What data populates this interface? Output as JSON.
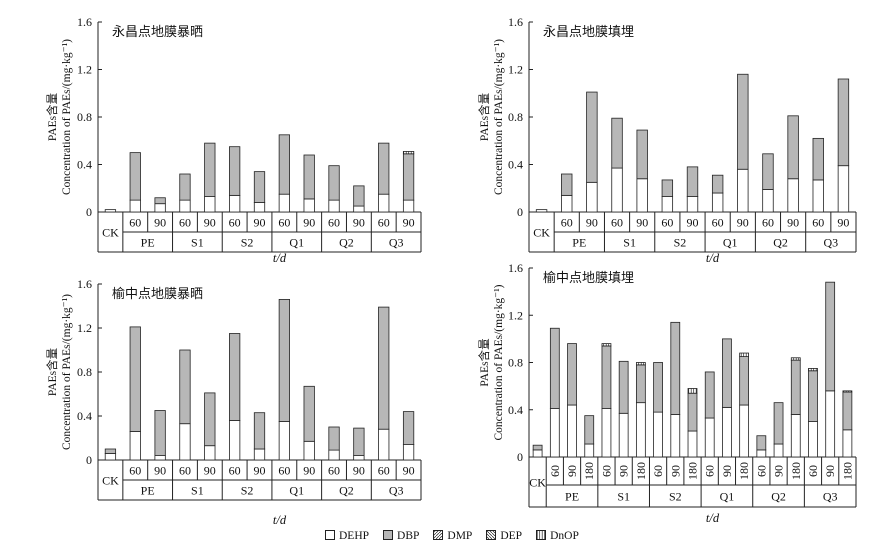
{
  "colors": {
    "DEHP": "#ffffff",
    "DBP": "#b7b7b7",
    "DMP": "#ffffff",
    "DEP": "#ffffff",
    "DnOP": "#ffffff",
    "stroke": "#222222"
  },
  "legend": [
    {
      "label": "DEHP",
      "pattern": "solid-white"
    },
    {
      "label": "DBP",
      "pattern": "solid-gray"
    },
    {
      "label": "DMP",
      "pattern": "hatch-forward"
    },
    {
      "label": "DEP",
      "pattern": "hatch-back"
    },
    {
      "label": "DnOP",
      "pattern": "vertical-lines"
    }
  ],
  "chart_data": [
    {
      "type": "bar",
      "stacked": true,
      "title": "永昌点地膜暴晒",
      "ylabel_cn": "PAEs含量",
      "ylabel": "Concentration of PAEs/(mg·kg⁻¹)",
      "xlabel": "t/d",
      "ylim": [
        0,
        1.6
      ],
      "yticks": [
        "0",
        "0.4",
        "0.8",
        "1.2",
        "1.6"
      ],
      "categories": [
        "CK",
        "60",
        "90",
        "60",
        "90",
        "60",
        "90",
        "60",
        "90",
        "60",
        "90",
        "60",
        "90"
      ],
      "groups": [
        {
          "label": "CK",
          "count": 1
        },
        {
          "label": "PE",
          "count": 2
        },
        {
          "label": "S1",
          "count": 2
        },
        {
          "label": "S2",
          "count": 2
        },
        {
          "label": "Q1",
          "count": 2
        },
        {
          "label": "Q2",
          "count": 2
        },
        {
          "label": "Q3",
          "count": 2
        }
      ],
      "series": [
        {
          "name": "DEHP",
          "values": [
            0.02,
            0.1,
            0.07,
            0.1,
            0.13,
            0.14,
            0.08,
            0.15,
            0.11,
            0.1,
            0.05,
            0.15,
            0.1
          ]
        },
        {
          "name": "DBP",
          "values": [
            0.0,
            0.4,
            0.05,
            0.22,
            0.45,
            0.41,
            0.26,
            0.5,
            0.37,
            0.29,
            0.17,
            0.43,
            0.39
          ]
        },
        {
          "name": "DMP",
          "values": [
            0,
            0,
            0,
            0,
            0,
            0,
            0,
            0,
            0,
            0,
            0,
            0,
            0
          ]
        },
        {
          "name": "DEP",
          "values": [
            0,
            0,
            0,
            0,
            0,
            0,
            0,
            0,
            0,
            0,
            0,
            0,
            0
          ]
        },
        {
          "name": "DnOP",
          "values": [
            0,
            0,
            0,
            0,
            0,
            0,
            0,
            0,
            0,
            0,
            0,
            0,
            0.02
          ]
        }
      ]
    },
    {
      "type": "bar",
      "stacked": true,
      "title": "永昌点地膜填埋",
      "ylabel_cn": "PAEs含量",
      "ylabel": "Concentration of PAEs/(mg·kg⁻¹)",
      "xlabel": "t/d",
      "ylim": [
        0,
        1.6
      ],
      "yticks": [
        "0",
        "0.4",
        "0.8",
        "1.2",
        "1.6"
      ],
      "categories": [
        "CK",
        "60",
        "90",
        "60",
        "90",
        "60",
        "90",
        "60",
        "90",
        "60",
        "90",
        "60",
        "90"
      ],
      "groups": [
        {
          "label": "CK",
          "count": 1
        },
        {
          "label": "PE",
          "count": 2
        },
        {
          "label": "S1",
          "count": 2
        },
        {
          "label": "S2",
          "count": 2
        },
        {
          "label": "Q1",
          "count": 2
        },
        {
          "label": "Q2",
          "count": 2
        },
        {
          "label": "Q3",
          "count": 2
        }
      ],
      "series": [
        {
          "name": "DEHP",
          "values": [
            0.02,
            0.14,
            0.25,
            0.37,
            0.28,
            0.13,
            0.13,
            0.16,
            0.36,
            0.19,
            0.28,
            0.27,
            0.39
          ]
        },
        {
          "name": "DBP",
          "values": [
            0.0,
            0.18,
            0.76,
            0.42,
            0.41,
            0.14,
            0.25,
            0.15,
            0.8,
            0.3,
            0.53,
            0.35,
            0.73
          ]
        },
        {
          "name": "DMP",
          "values": [
            0,
            0,
            0,
            0,
            0,
            0,
            0,
            0,
            0,
            0,
            0,
            0,
            0
          ]
        },
        {
          "name": "DEP",
          "values": [
            0,
            0,
            0,
            0,
            0,
            0,
            0,
            0,
            0,
            0,
            0,
            0,
            0
          ]
        },
        {
          "name": "DnOP",
          "values": [
            0,
            0,
            0,
            0,
            0,
            0,
            0,
            0,
            0,
            0,
            0,
            0,
            0
          ]
        }
      ]
    },
    {
      "type": "bar",
      "stacked": true,
      "title": "榆中点地膜暴晒",
      "ylabel_cn": "PAEs含量",
      "ylabel": "Concentration of PAEs/(mg·kg⁻¹)",
      "xlabel": "t/d",
      "ylim": [
        0,
        1.6
      ],
      "yticks": [
        "0",
        "0.4",
        "0.8",
        "1.2",
        "1.6"
      ],
      "categories": [
        "CK",
        "60",
        "90",
        "60",
        "90",
        "60",
        "90",
        "60",
        "90",
        "60",
        "90",
        "60",
        "90"
      ],
      "groups": [
        {
          "label": "CK",
          "count": 1
        },
        {
          "label": "PE",
          "count": 2
        },
        {
          "label": "S1",
          "count": 2
        },
        {
          "label": "S2",
          "count": 2
        },
        {
          "label": "Q1",
          "count": 2
        },
        {
          "label": "Q2",
          "count": 2
        },
        {
          "label": "Q3",
          "count": 2
        }
      ],
      "series": [
        {
          "name": "DEHP",
          "values": [
            0.06,
            0.26,
            0.04,
            0.33,
            0.13,
            0.36,
            0.1,
            0.35,
            0.17,
            0.09,
            0.04,
            0.28,
            0.14
          ]
        },
        {
          "name": "DBP",
          "values": [
            0.04,
            0.95,
            0.41,
            0.67,
            0.48,
            0.79,
            0.33,
            1.11,
            0.5,
            0.21,
            0.25,
            1.11,
            0.3
          ]
        },
        {
          "name": "DMP",
          "values": [
            0,
            0,
            0,
            0,
            0,
            0,
            0,
            0,
            0,
            0,
            0,
            0,
            0
          ]
        },
        {
          "name": "DEP",
          "values": [
            0,
            0,
            0,
            0,
            0,
            0,
            0,
            0,
            0,
            0,
            0,
            0,
            0
          ]
        },
        {
          "name": "DnOP",
          "values": [
            0,
            0,
            0,
            0,
            0,
            0,
            0,
            0,
            0,
            0,
            0,
            0,
            0
          ]
        }
      ]
    },
    {
      "type": "bar",
      "stacked": true,
      "title": "榆中点地膜填埋",
      "ylabel_cn": "PAEs含量",
      "ylabel": "Concentration of PAEs/(mg·kg⁻¹)",
      "xlabel": "t/d",
      "ylim": [
        0,
        1.6
      ],
      "yticks": [
        "0",
        "0.4",
        "0.8",
        "1.2",
        "1.6"
      ],
      "categories": [
        "CK",
        "60",
        "90",
        "180",
        "60",
        "90",
        "180",
        "60",
        "90",
        "180",
        "60",
        "90",
        "180",
        "60",
        "90",
        "180",
        "60",
        "90",
        "180"
      ],
      "groups": [
        {
          "label": "CK",
          "count": 1
        },
        {
          "label": "PE",
          "count": 3
        },
        {
          "label": "S1",
          "count": 3
        },
        {
          "label": "S2",
          "count": 3
        },
        {
          "label": "Q1",
          "count": 3
        },
        {
          "label": "Q2",
          "count": 3
        },
        {
          "label": "Q3",
          "count": 3
        }
      ],
      "series": [
        {
          "name": "DEHP",
          "values": [
            0.06,
            0.41,
            0.44,
            0.11,
            0.41,
            0.37,
            0.46,
            0.38,
            0.36,
            0.22,
            0.33,
            0.42,
            0.44,
            0.06,
            0.11,
            0.36,
            0.3,
            0.56,
            0.23
          ]
        },
        {
          "name": "DBP",
          "values": [
            0.04,
            0.68,
            0.52,
            0.24,
            0.53,
            0.44,
            0.32,
            0.42,
            0.78,
            0.32,
            0.39,
            0.58,
            0.41,
            0.12,
            0.35,
            0.46,
            0.43,
            0.92,
            0.32
          ]
        },
        {
          "name": "DMP",
          "values": [
            0,
            0,
            0,
            0,
            0,
            0,
            0,
            0,
            0,
            0,
            0,
            0,
            0,
            0,
            0,
            0,
            0,
            0,
            0
          ]
        },
        {
          "name": "DEP",
          "values": [
            0,
            0,
            0,
            0,
            0,
            0,
            0,
            0,
            0,
            0,
            0,
            0,
            0,
            0,
            0,
            0,
            0,
            0,
            0
          ]
        },
        {
          "name": "DnOP",
          "values": [
            0,
            0,
            0,
            0,
            0.02,
            0,
            0.02,
            0,
            0,
            0.04,
            0,
            0,
            0.03,
            0,
            0,
            0.02,
            0.02,
            0,
            0.01
          ]
        }
      ]
    }
  ]
}
